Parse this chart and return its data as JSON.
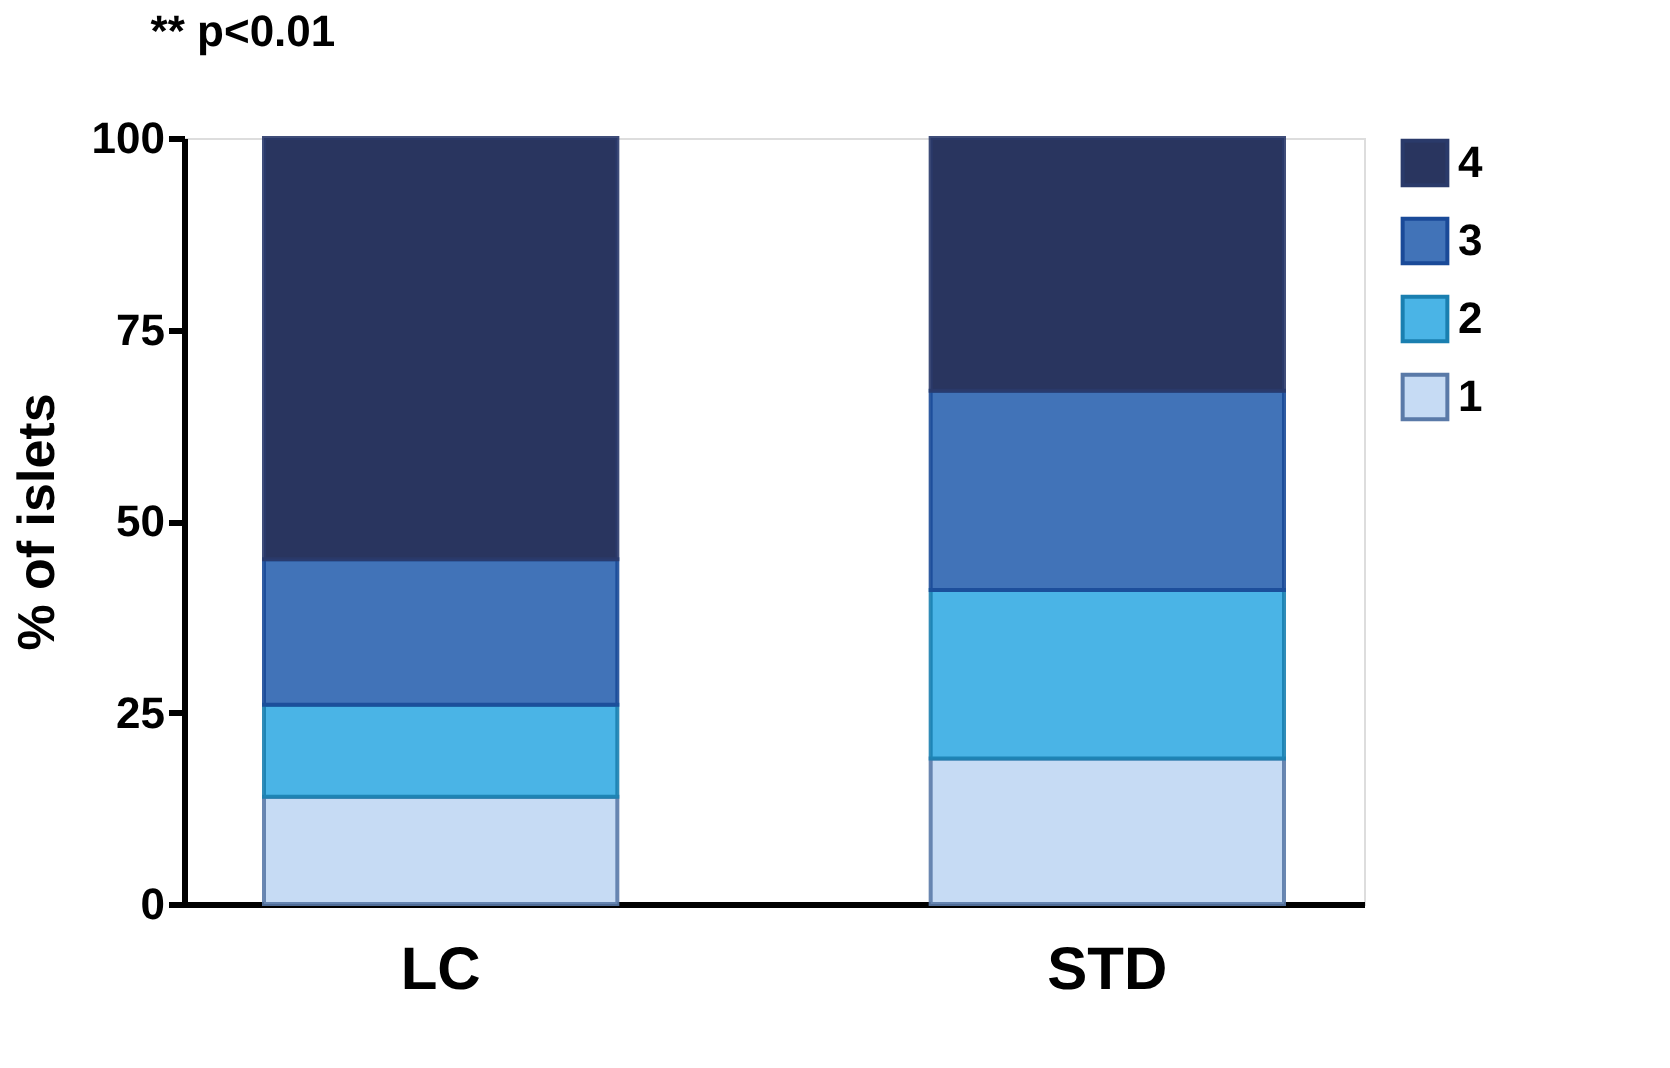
{
  "chart_data": {
    "type": "bar",
    "stacked": true,
    "ylabel": "% of islets",
    "categories": [
      "LC",
      "STD"
    ],
    "series": [
      {
        "name": "1",
        "color": "#c6dbf4",
        "values": [
          14,
          19
        ]
      },
      {
        "name": "2",
        "color": "#4ab4e6",
        "values": [
          12,
          22
        ]
      },
      {
        "name": "3",
        "color": "#4173b8",
        "values": [
          19,
          26
        ]
      },
      {
        "name": "4",
        "color": "#29355f",
        "values": [
          55,
          33
        ]
      }
    ],
    "ylim": [
      0,
      100
    ],
    "yticks": [
      0,
      25,
      50,
      75,
      100
    ],
    "grid": false,
    "legend": "right",
    "annotations": [
      "** p<0.01"
    ]
  }
}
